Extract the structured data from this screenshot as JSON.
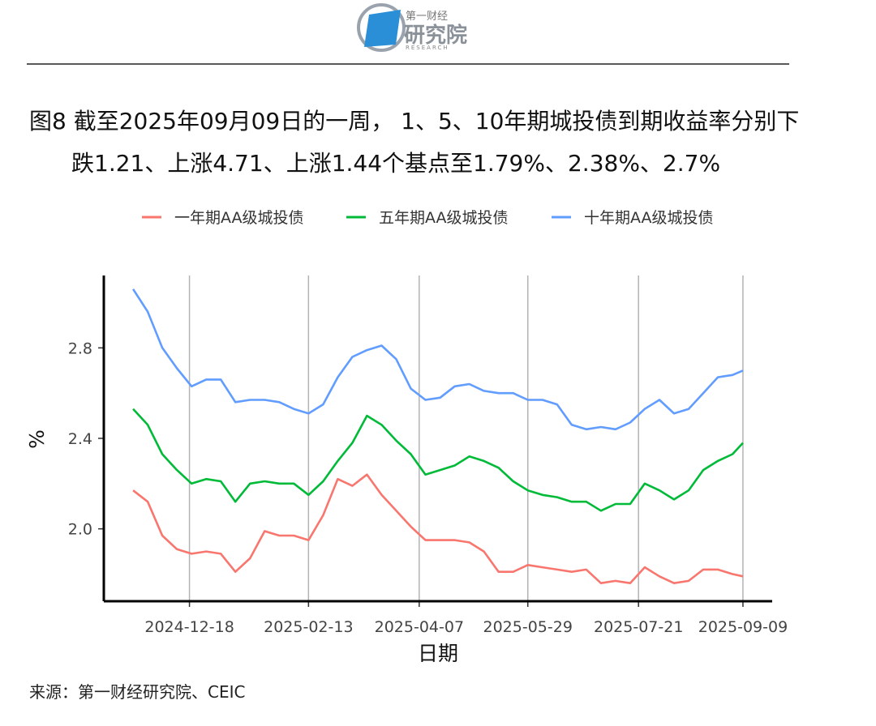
{
  "header": {
    "logo_top": "第一财经",
    "logo_main": "研究院",
    "logo_sub": "RESEARCH"
  },
  "chart_data": {
    "type": "line",
    "title": "图8  截至2025年09月09日的一周， 1、5、10年期城投债到期收益率分别下跌1.21、上涨4.71、上涨1.44个基点至1.79%、2.38%、2.7%",
    "xlabel": "日期",
    "ylabel": "%",
    "x": [
      "2024-11-21",
      "2024-11-28",
      "2024-12-05",
      "2024-12-12",
      "2024-12-19",
      "2024-12-26",
      "2025-01-02",
      "2025-01-09",
      "2025-01-16",
      "2025-01-23",
      "2025-01-30",
      "2025-02-06",
      "2025-02-13",
      "2025-02-20",
      "2025-02-27",
      "2025-03-06",
      "2025-03-13",
      "2025-03-20",
      "2025-03-27",
      "2025-04-03",
      "2025-04-10",
      "2025-04-17",
      "2025-04-24",
      "2025-05-01",
      "2025-05-08",
      "2025-05-15",
      "2025-05-22",
      "2025-05-29",
      "2025-06-05",
      "2025-06-12",
      "2025-06-19",
      "2025-06-26",
      "2025-07-03",
      "2025-07-10",
      "2025-07-17",
      "2025-07-24",
      "2025-07-31",
      "2025-08-07",
      "2025-08-14",
      "2025-08-21",
      "2025-08-28",
      "2025-09-04",
      "2025-09-09"
    ],
    "series": [
      {
        "name": "一年期AA级城投债",
        "color": "#f8766d",
        "values": [
          2.17,
          2.12,
          1.97,
          1.91,
          1.89,
          1.9,
          1.89,
          1.81,
          1.87,
          1.99,
          1.97,
          1.97,
          1.95,
          2.06,
          2.22,
          2.19,
          2.24,
          2.15,
          2.08,
          2.01,
          1.95,
          1.95,
          1.95,
          1.94,
          1.9,
          1.81,
          1.81,
          1.84,
          1.83,
          1.82,
          1.81,
          1.82,
          1.76,
          1.77,
          1.76,
          1.83,
          1.79,
          1.76,
          1.77,
          1.82,
          1.82,
          1.8,
          1.79
        ]
      },
      {
        "name": "五年期AA级城投债",
        "color": "#00ba38",
        "values": [
          2.53,
          2.46,
          2.33,
          2.26,
          2.2,
          2.22,
          2.21,
          2.12,
          2.2,
          2.21,
          2.2,
          2.2,
          2.15,
          2.21,
          2.3,
          2.38,
          2.5,
          2.46,
          2.39,
          2.33,
          2.24,
          2.26,
          2.28,
          2.32,
          2.3,
          2.27,
          2.21,
          2.17,
          2.15,
          2.14,
          2.12,
          2.12,
          2.08,
          2.11,
          2.11,
          2.2,
          2.17,
          2.13,
          2.17,
          2.26,
          2.3,
          2.33,
          2.38
        ]
      },
      {
        "name": "十年期AA级城投债",
        "color": "#619cff",
        "values": [
          3.06,
          2.96,
          2.8,
          2.71,
          2.63,
          2.66,
          2.66,
          2.56,
          2.57,
          2.57,
          2.56,
          2.53,
          2.51,
          2.55,
          2.67,
          2.76,
          2.79,
          2.81,
          2.75,
          2.62,
          2.57,
          2.58,
          2.63,
          2.64,
          2.61,
          2.6,
          2.6,
          2.57,
          2.57,
          2.55,
          2.46,
          2.44,
          2.45,
          2.44,
          2.47,
          2.53,
          2.57,
          2.51,
          2.53,
          2.6,
          2.67,
          2.68,
          2.7
        ]
      }
    ],
    "xlim": [
      "2024-11-07",
      "2025-09-23"
    ],
    "xticks": [
      "2024-12-18",
      "2025-02-13",
      "2025-04-07",
      "2025-05-29",
      "2025-07-21",
      "2025-09-09"
    ],
    "ylim": [
      1.68,
      3.12
    ],
    "yticks": [
      {
        "value": 2,
        "label": "2.0"
      },
      2.4,
      2.8
    ],
    "grid": true
  },
  "source": "来源：第一财经研究院、CEIC"
}
